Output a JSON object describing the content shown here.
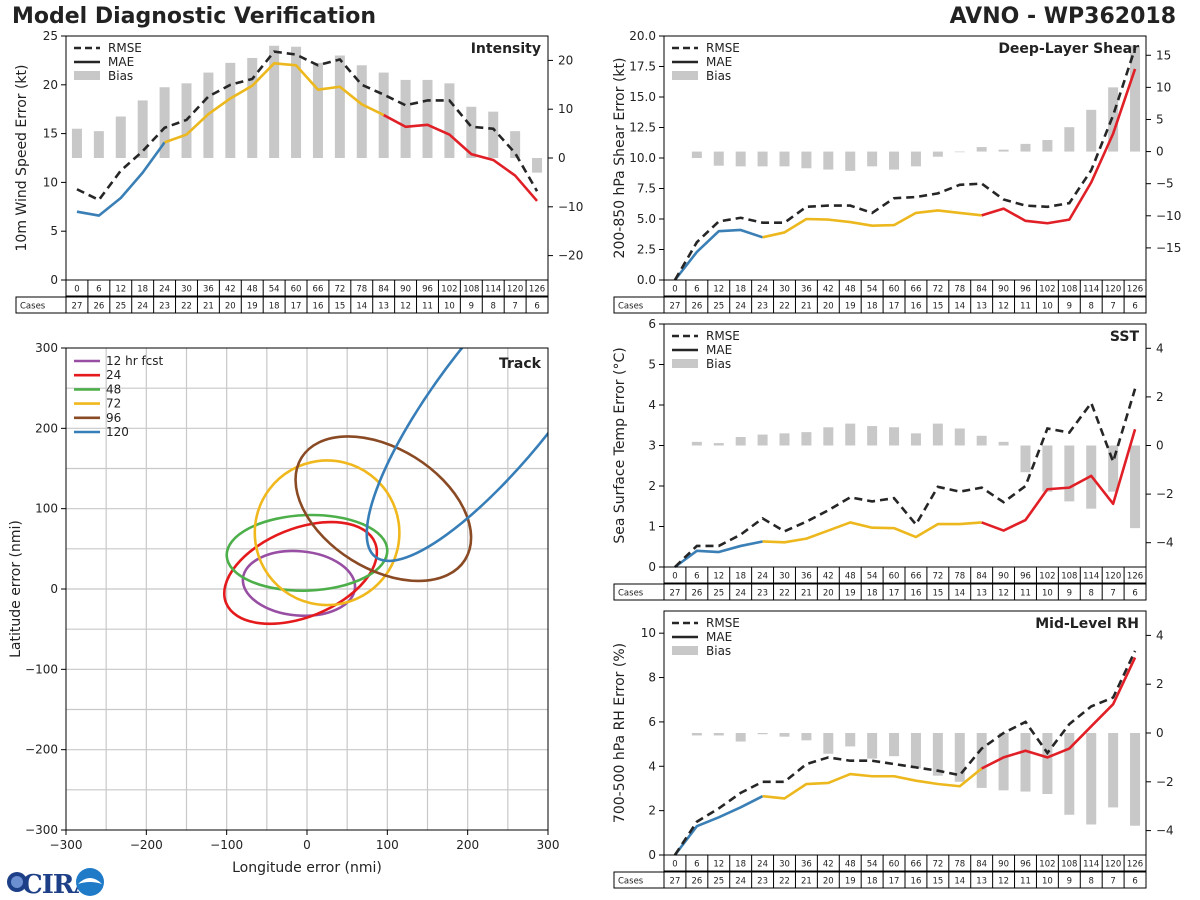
{
  "header": {
    "title": "Model Diagnostic Verification",
    "subtitle": "AVNO - WP362018"
  },
  "table": {
    "cases_label": "Cases",
    "hours": [
      "0",
      "6",
      "12",
      "18",
      "24",
      "30",
      "36",
      "42",
      "48",
      "54",
      "60",
      "66",
      "72",
      "78",
      "84",
      "90",
      "96",
      "102",
      "108",
      "114",
      "120",
      "126"
    ],
    "cases": [
      "27",
      "26",
      "25",
      "24",
      "23",
      "22",
      "21",
      "20",
      "19",
      "18",
      "17",
      "16",
      "15",
      "14",
      "13",
      "12",
      "11",
      "10",
      "9",
      "8",
      "7",
      "6"
    ]
  },
  "legend_labels": {
    "rmse": "RMSE",
    "mae": "MAE",
    "bias": "Bias"
  },
  "logo": {
    "text": "CIRA"
  },
  "chart_data": [
    {
      "id": "intensity",
      "type": "line+bar",
      "title": "Intensity",
      "ylabel": "10m Wind Speed Error (kt)",
      "ylim": [
        0,
        25
      ],
      "yticks": [
        "0",
        "5",
        "10",
        "15",
        "20",
        "25"
      ],
      "y2lim": [
        -25,
        25
      ],
      "y2ticks": [
        "−20",
        "−10",
        "0",
        "10",
        "20"
      ],
      "x": [
        0,
        6,
        12,
        18,
        24,
        30,
        36,
        42,
        48,
        54,
        60,
        66,
        72,
        78,
        84,
        90,
        96,
        102,
        108,
        114,
        120,
        126
      ],
      "rmse": [
        9.3,
        8.2,
        11.2,
        13.2,
        15.6,
        16.4,
        18.8,
        20.0,
        20.6,
        23.4,
        23.1,
        22.0,
        22.6,
        20.0,
        19.0,
        17.9,
        18.4,
        18.4,
        15.7,
        15.5,
        13.0,
        9.1
      ],
      "mae": [
        7.0,
        6.6,
        8.4,
        11.0,
        14.1,
        14.9,
        17.0,
        18.6,
        19.9,
        22.2,
        22.0,
        19.5,
        19.8,
        18.0,
        16.9,
        15.7,
        15.9,
        14.9,
        12.9,
        12.3,
        10.7,
        8.1
      ],
      "bias": [
        6,
        5.5,
        8.5,
        11.8,
        14.5,
        15.3,
        17.5,
        19.5,
        20.5,
        23,
        22.8,
        19.5,
        21,
        19,
        17.5,
        16,
        16,
        15.3,
        10.5,
        9.5,
        5.5,
        -3
      ]
    },
    {
      "id": "shear",
      "type": "line+bar",
      "title": "Deep-Layer Shear",
      "ylabel": "200-850 hPa Shear Error (kt)",
      "ylim": [
        0,
        20
      ],
      "yticks": [
        "0.0",
        "2.5",
        "5.0",
        "7.5",
        "10.0",
        "12.5",
        "15.0",
        "17.5",
        "20.0"
      ],
      "y2lim": [
        -20,
        18
      ],
      "y2ticks": [
        "−15",
        "−10",
        "−5",
        "0",
        "5",
        "10",
        "15"
      ],
      "x": [
        0,
        6,
        12,
        18,
        24,
        30,
        36,
        42,
        48,
        54,
        60,
        66,
        72,
        78,
        84,
        90,
        96,
        102,
        108,
        114,
        120,
        126
      ],
      "rmse": [
        0,
        3.1,
        4.8,
        5.1,
        4.7,
        4.7,
        6.0,
        6.1,
        6.1,
        5.5,
        6.7,
        6.8,
        7.1,
        7.8,
        7.9,
        6.6,
        6.1,
        6.0,
        6.3,
        9.0,
        13.5,
        19.0
      ],
      "mae": [
        0,
        2.3,
        4.0,
        4.1,
        3.5,
        3.9,
        5.0,
        4.95,
        4.75,
        4.45,
        4.5,
        5.5,
        5.7,
        5.5,
        5.3,
        5.85,
        4.85,
        4.65,
        4.95,
        8.0,
        12.0,
        17.3
      ],
      "bias": [
        0,
        -1,
        -2.2,
        -2.3,
        -2.3,
        -2.3,
        -2.6,
        -2.8,
        -3,
        -2.3,
        -2.8,
        -2.3,
        -0.8,
        -0.1,
        0.7,
        0.3,
        1.2,
        1.8,
        3.8,
        6.5,
        10.0,
        16.5
      ]
    },
    {
      "id": "sst",
      "type": "line+bar",
      "title": "SST",
      "ylabel": "Sea Surface Temp Error (°C)",
      "ylim": [
        0,
        6
      ],
      "yticks": [
        "0",
        "1",
        "2",
        "3",
        "4",
        "5",
        "6"
      ],
      "y2lim": [
        -5,
        5
      ],
      "y2ticks": [
        "−4",
        "−2",
        "0",
        "2",
        "4"
      ],
      "x": [
        0,
        6,
        12,
        18,
        24,
        30,
        36,
        42,
        48,
        54,
        60,
        66,
        72,
        78,
        84,
        90,
        96,
        102,
        108,
        114,
        120,
        126
      ],
      "rmse": [
        0,
        0.52,
        0.52,
        0.8,
        1.2,
        0.88,
        1.12,
        1.4,
        1.72,
        1.62,
        1.7,
        1.05,
        1.98,
        1.86,
        1.96,
        1.6,
        2.0,
        3.42,
        3.32,
        4.05,
        2.6,
        4.4
      ],
      "mae": [
        0,
        0.4,
        0.37,
        0.52,
        0.63,
        0.61,
        0.7,
        0.9,
        1.1,
        0.97,
        0.96,
        0.74,
        1.06,
        1.06,
        1.1,
        0.9,
        1.16,
        1.92,
        1.96,
        2.25,
        1.56,
        3.4
      ],
      "bias": [
        0,
        0.15,
        0.1,
        0.35,
        0.45,
        0.5,
        0.55,
        0.75,
        0.9,
        0.8,
        0.75,
        0.5,
        0.9,
        0.7,
        0.4,
        0.15,
        -1.1,
        -1.9,
        -2.3,
        -2.6,
        -1.9,
        -3.4
      ]
    },
    {
      "id": "rh",
      "type": "line+bar",
      "title": "Mid-Level RH",
      "ylabel": "700-500 hPa RH Error (%)",
      "ylim": [
        0,
        11
      ],
      "yticks": [
        "0",
        "2",
        "4",
        "6",
        "8",
        "10"
      ],
      "y2lim": [
        -5,
        5
      ],
      "y2ticks": [
        "−4",
        "−2",
        "0",
        "2",
        "4"
      ],
      "x": [
        0,
        6,
        12,
        18,
        24,
        30,
        36,
        42,
        48,
        54,
        60,
        66,
        72,
        78,
        84,
        90,
        96,
        102,
        108,
        114,
        120,
        126
      ],
      "rmse": [
        0,
        1.5,
        2.1,
        2.8,
        3.3,
        3.3,
        4.1,
        4.4,
        4.25,
        4.25,
        4.1,
        3.95,
        3.8,
        3.6,
        4.8,
        5.5,
        6.0,
        4.6,
        5.9,
        6.7,
        7.1,
        9.2
      ],
      "mae": [
        0,
        1.3,
        1.7,
        2.15,
        2.65,
        2.55,
        3.2,
        3.25,
        3.65,
        3.55,
        3.55,
        3.35,
        3.2,
        3.1,
        3.9,
        4.4,
        4.7,
        4.4,
        4.8,
        5.8,
        6.8,
        8.9
      ],
      "bias": [
        0,
        -0.1,
        -0.1,
        -0.35,
        -0.05,
        -0.15,
        -0.3,
        -0.85,
        -0.55,
        -1.05,
        -0.95,
        -1.45,
        -1.75,
        -2.0,
        -2.25,
        -2.35,
        -2.4,
        -2.5,
        -3.35,
        -3.75,
        -3.05,
        -3.8
      ]
    },
    {
      "id": "track",
      "type": "ellipse-scatter",
      "title": "Track",
      "xlabel": "Longitude error (nmi)",
      "ylabel": "Latitude error (nmi)",
      "xlim": [
        -300,
        300
      ],
      "ylim": [
        -300,
        300
      ],
      "xticks": [
        "−300",
        "−200",
        "−100",
        "0",
        "100",
        "200",
        "300"
      ],
      "yticks": [
        "−300",
        "−200",
        "−100",
        "0",
        "100",
        "200",
        "300"
      ],
      "series": [
        {
          "name": "12 hr fcst",
          "color": "#984ea3",
          "cx": -10,
          "cy": 7,
          "rx": 70,
          "ry": 40,
          "angle": -5
        },
        {
          "name": "24",
          "color": "#e41a1c",
          "cx": -8,
          "cy": 20,
          "rx": 100,
          "ry": 55,
          "angle": 22
        },
        {
          "name": "48",
          "color": "#4daf4a",
          "cx": 0,
          "cy": 45,
          "rx": 100,
          "ry": 47,
          "angle": 2
        },
        {
          "name": "72",
          "color": "#f0b81c",
          "cx": 25,
          "cy": 70,
          "rx": 90,
          "ry": 90,
          "angle": 8
        },
        {
          "name": "96",
          "color": "#8a4a24",
          "cx": 95,
          "cy": 100,
          "rx": 120,
          "ry": 75,
          "angle": -32
        },
        {
          "name": "120",
          "color": "#377eb8",
          "cx": 245,
          "cy": 245,
          "rx": 260,
          "ry": 75,
          "angle": 52
        }
      ]
    }
  ]
}
